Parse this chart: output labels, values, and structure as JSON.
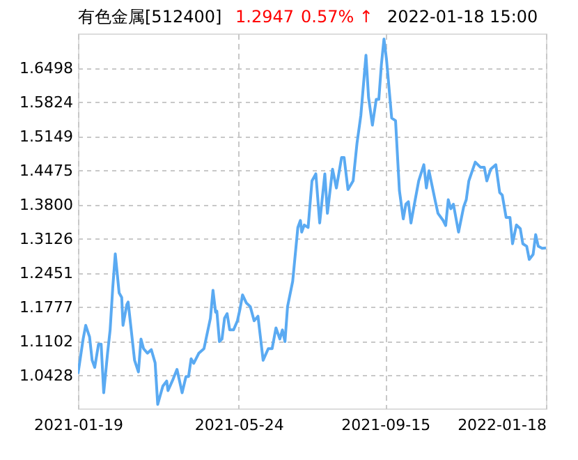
{
  "chart_data": {
    "type": "line",
    "title": "有色金属[512400]",
    "annotations": [
      "1.2947",
      "0.57% ↑",
      "2022-01-18 15:00"
    ],
    "x": [
      "2021-01-19",
      "2021-01-23",
      "2021-01-25",
      "2021-01-28",
      "2021-01-30",
      "2021-02-01",
      "2021-02-04",
      "2021-02-06",
      "2021-02-08",
      "2021-02-11",
      "2021-02-13",
      "2021-02-15",
      "2021-02-17",
      "2021-02-20",
      "2021-02-22",
      "2021-02-23",
      "2021-02-26",
      "2021-02-27",
      "2021-03-01",
      "2021-03-04",
      "2021-03-07",
      "2021-03-09",
      "2021-03-11",
      "2021-03-14",
      "2021-03-17",
      "2021-03-20",
      "2021-03-22",
      "2021-03-26",
      "2021-03-29",
      "2021-03-30",
      "2021-04-03",
      "2021-04-06",
      "2021-04-10",
      "2021-04-13",
      "2021-04-15",
      "2021-04-17",
      "2021-04-19",
      "2021-04-23",
      "2021-04-27",
      "2021-05-02",
      "2021-05-04",
      "2021-05-06",
      "2021-05-07",
      "2021-05-09",
      "2021-05-11",
      "2021-05-13",
      "2021-05-15",
      "2021-05-17",
      "2021-05-20",
      "2021-05-23",
      "2021-05-25",
      "2021-05-27",
      "2021-05-30",
      "2021-06-02",
      "2021-06-05",
      "2021-06-08",
      "2021-06-12",
      "2021-06-16",
      "2021-06-19",
      "2021-06-22",
      "2021-06-25",
      "2021-06-27",
      "2021-06-29",
      "2021-07-01",
      "2021-07-05",
      "2021-07-09",
      "2021-07-11",
      "2021-07-12",
      "2021-07-14",
      "2021-07-17",
      "2021-07-20",
      "2021-07-23",
      "2021-07-26",
      "2021-07-30",
      "2021-08-01",
      "2021-08-05",
      "2021-08-08",
      "2021-08-12",
      "2021-08-14",
      "2021-08-17",
      "2021-08-21",
      "2021-08-24",
      "2021-08-27",
      "2021-08-31",
      "2021-09-02",
      "2021-09-05",
      "2021-09-08",
      "2021-09-10",
      "2021-09-12",
      "2021-09-14",
      "2021-09-16",
      "2021-09-20",
      "2021-09-23",
      "2021-09-26",
      "2021-09-29",
      "2021-10-01",
      "2021-10-03",
      "2021-10-05",
      "2021-10-08",
      "2021-10-11",
      "2021-10-15",
      "2021-10-17",
      "2021-10-19",
      "2021-10-24",
      "2021-10-26",
      "2021-10-30",
      "2021-11-01",
      "2021-11-03",
      "2021-11-05",
      "2021-11-07",
      "2021-11-11",
      "2021-11-15",
      "2021-11-17",
      "2021-11-19",
      "2021-11-24",
      "2021-11-28",
      "2021-12-01",
      "2021-12-03",
      "2021-12-06",
      "2021-12-10",
      "2021-12-13",
      "2021-12-15",
      "2021-12-18",
      "2021-12-21",
      "2021-12-23",
      "2021-12-26",
      "2021-12-29",
      "2021-12-31",
      "2022-01-03",
      "2022-01-05",
      "2022-01-08",
      "2022-01-10",
      "2022-01-12",
      "2022-01-15",
      "2022-01-18"
    ],
    "series": [
      {
        "color": "#5aaaf2",
        "values": [
          1.046,
          1.115,
          1.142,
          1.119,
          1.073,
          1.059,
          1.105,
          1.105,
          1.009,
          1.087,
          1.133,
          1.215,
          1.283,
          1.206,
          1.197,
          1.142,
          1.183,
          1.188,
          1.142,
          1.073,
          1.05,
          1.115,
          1.096,
          1.087,
          1.094,
          1.068,
          0.986,
          1.022,
          1.032,
          1.013,
          1.036,
          1.055,
          1.009,
          1.041,
          1.041,
          1.076,
          1.067,
          1.087,
          1.096,
          1.156,
          1.211,
          1.168,
          1.17,
          1.11,
          1.115,
          1.156,
          1.165,
          1.133,
          1.133,
          1.151,
          1.174,
          1.202,
          1.186,
          1.179,
          1.151,
          1.16,
          1.073,
          1.096,
          1.096,
          1.137,
          1.115,
          1.133,
          1.11,
          1.179,
          1.229,
          1.335,
          1.349,
          1.326,
          1.34,
          1.335,
          1.427,
          1.441,
          1.344,
          1.441,
          1.363,
          1.45,
          1.413,
          1.473,
          1.473,
          1.41,
          1.427,
          1.501,
          1.556,
          1.675,
          1.592,
          1.537,
          1.588,
          1.588,
          1.657,
          1.707,
          1.666,
          1.551,
          1.546,
          1.408,
          1.352,
          1.381,
          1.386,
          1.344,
          1.386,
          1.427,
          1.459,
          1.413,
          1.447,
          1.386,
          1.363,
          1.349,
          1.339,
          1.39,
          1.372,
          1.381,
          1.326,
          1.376,
          1.39,
          1.427,
          1.464,
          1.454,
          1.454,
          1.427,
          1.45,
          1.459,
          1.404,
          1.399,
          1.355,
          1.355,
          1.303,
          1.34,
          1.333,
          1.303,
          1.298,
          1.272,
          1.282,
          1.321,
          1.298,
          1.294,
          1.2947
        ]
      }
    ],
    "xlim": [
      "2021-01-19",
      "2022-01-18"
    ],
    "xticks": [
      "2021-01-19",
      "2021-05-24",
      "2021-09-15",
      "2022-01-18"
    ],
    "ylim": [
      0.978,
      1.718
    ],
    "yticks": [
      1.0428,
      1.1102,
      1.1777,
      1.2451,
      1.3126,
      {
        "value": 1.38,
        "label": "1.3800"
      },
      1.4475,
      1.5149,
      1.5824,
      1.6498
    ],
    "grid": true
  }
}
